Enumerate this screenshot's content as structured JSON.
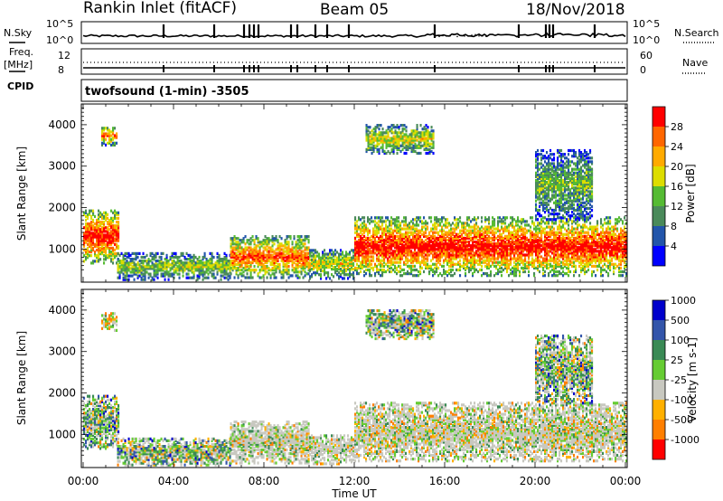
{
  "header": {
    "title": "Rankin Inlet (fitACF)",
    "beam": "Beam 05",
    "date": "18/Nov/2018"
  },
  "top_panels": {
    "nsky_label": "N.Sky",
    "nsearch_label": "N.Search",
    "freq_label": "Freq.",
    "freq_unit": "[MHz]",
    "nave_label": "Nave",
    "cpid_label": "CPID",
    "nsky_ticks": [
      "10^5",
      "10^0"
    ],
    "nsearch_ticks": [
      "10^5",
      "10^0"
    ],
    "freq_ticks": [
      "12",
      "8"
    ],
    "nave_ticks": [
      "60",
      "0"
    ],
    "cpid_text": "twofsound (1-min) -3505"
  },
  "colors": {
    "power_scale": [
      "#0000ff",
      "#2255aa",
      "#4a8a5a",
      "#55bb33",
      "#dddd00",
      "#ffaa00",
      "#ff6600",
      "#ff0000"
    ],
    "velocity_scale": [
      "#ff0000",
      "#ff7f00",
      "#ffb000",
      "#c8c8c0",
      "#66cc33",
      "#3a8a55",
      "#3355aa",
      "#0000cc"
    ]
  },
  "chart_data": [
    {
      "type": "heatmap",
      "name": "power",
      "ylabel": "Slant Range [km]",
      "xlabel": "Time UT",
      "x_ticks": [
        "00:00",
        "04:00",
        "08:00",
        "12:00",
        "16:00",
        "20:00",
        "00:00"
      ],
      "y_ticks": [
        1000,
        2000,
        3000,
        4000
      ],
      "ylim": [
        200,
        4500
      ],
      "xlim_hours": [
        0,
        24
      ],
      "colorbar_label": "Power [dB]",
      "colorbar_ticks": [
        4,
        8,
        12,
        16,
        20,
        24,
        28
      ],
      "regions": [
        {
          "t0": 0.0,
          "t1": 1.6,
          "r0": 650,
          "r1": 1950,
          "peak": 0.92
        },
        {
          "t0": 0.8,
          "t1": 1.5,
          "r0": 3500,
          "r1": 3950,
          "peak": 0.75
        },
        {
          "t0": 1.5,
          "t1": 6.5,
          "r0": 250,
          "r1": 900,
          "peak": 0.45
        },
        {
          "t0": 6.5,
          "t1": 10.0,
          "r0": 300,
          "r1": 1300,
          "peak": 0.8
        },
        {
          "t0": 10.0,
          "t1": 12.0,
          "r0": 280,
          "r1": 1000,
          "peak": 0.55
        },
        {
          "t0": 12.0,
          "t1": 24.0,
          "r0": 350,
          "r1": 1750,
          "peak": 0.92
        },
        {
          "t0": 12.5,
          "t1": 15.5,
          "r0": 3300,
          "r1": 4000,
          "peak": 0.55
        },
        {
          "t0": 20.0,
          "t1": 22.5,
          "r0": 1700,
          "r1": 3400,
          "peak": 0.4
        }
      ]
    },
    {
      "type": "heatmap",
      "name": "velocity",
      "ylabel": "Slant Range [km]",
      "xlabel": "Time UT",
      "x_ticks": [
        "00:00",
        "04:00",
        "08:00",
        "12:00",
        "16:00",
        "20:00",
        "00:00"
      ],
      "y_ticks": [
        1000,
        2000,
        3000,
        4000
      ],
      "ylim": [
        200,
        4500
      ],
      "xlim_hours": [
        0,
        24
      ],
      "colorbar_label": "Velocity [m s-1]",
      "colorbar_ticks": [
        -1000,
        -500,
        -100,
        -25,
        25,
        100,
        500,
        1000
      ],
      "regions": [
        {
          "t0": 0.0,
          "t1": 1.6,
          "r0": 650,
          "r1": 1950,
          "peak": 0.75
        },
        {
          "t0": 0.8,
          "t1": 1.5,
          "r0": 3500,
          "r1": 3950,
          "peak": 0.2
        },
        {
          "t0": 1.5,
          "t1": 6.5,
          "r0": 250,
          "r1": 900,
          "peak": 0.6
        },
        {
          "t0": 6.5,
          "t1": 10.0,
          "r0": 300,
          "r1": 1300,
          "peak": 0.45
        },
        {
          "t0": 10.0,
          "t1": 12.0,
          "r0": 280,
          "r1": 1000,
          "peak": 0.4
        },
        {
          "t0": 12.0,
          "t1": 24.0,
          "r0": 350,
          "r1": 1750,
          "peak": 0.3
        },
        {
          "t0": 12.5,
          "t1": 15.5,
          "r0": 3300,
          "r1": 4000,
          "peak": 0.55
        },
        {
          "t0": 20.0,
          "t1": 22.5,
          "r0": 1700,
          "r1": 3400,
          "peak": 0.55
        }
      ]
    }
  ]
}
